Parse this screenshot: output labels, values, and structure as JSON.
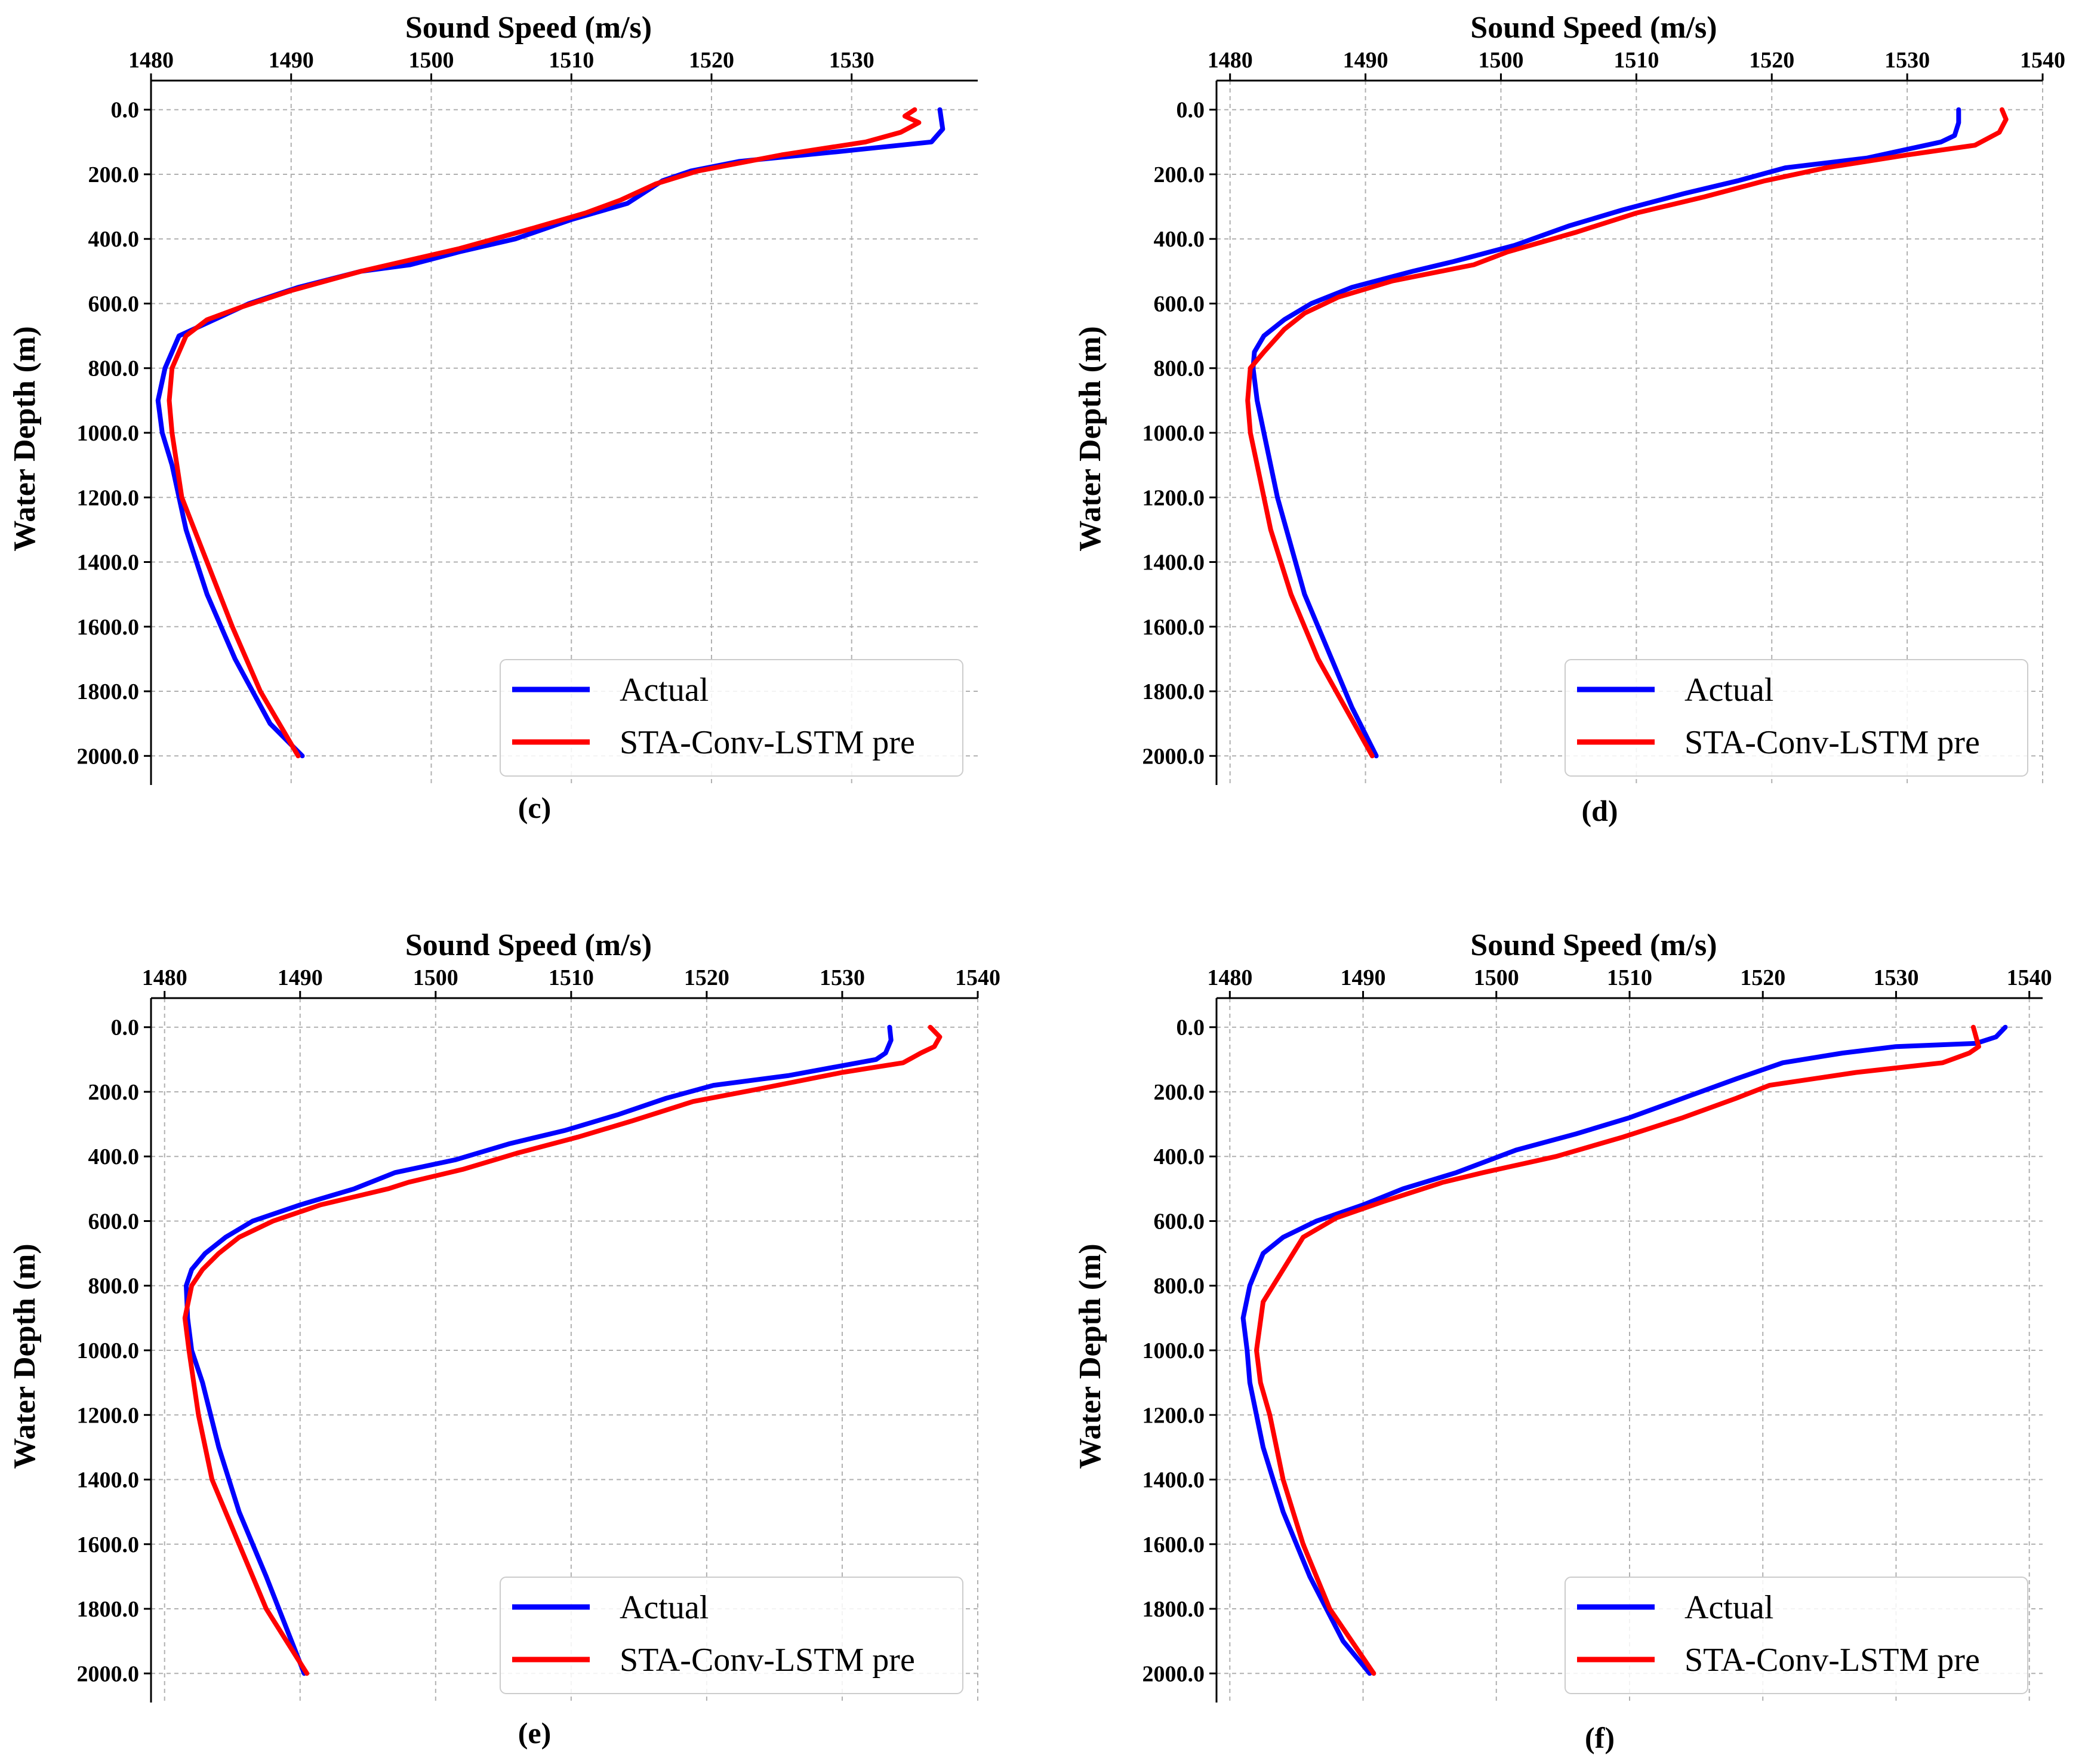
{
  "chart_data": [
    {
      "id": "c",
      "type": "line",
      "label": "(c)",
      "xlabel": "Sound Speed (m/s)",
      "ylabel": "Water Depth (m)",
      "xlim": [
        1480,
        1539
      ],
      "x_ticks": [
        1480,
        1490,
        1500,
        1510,
        1520,
        1530
      ],
      "x_tick_labels": [
        "1480",
        "1490",
        "1500",
        "1510",
        "1520",
        "1530"
      ],
      "ylim": [
        2090,
        -90
      ],
      "y_ticks": [
        0,
        200,
        400,
        600,
        800,
        1000,
        1200,
        1400,
        1600,
        1800,
        2000
      ],
      "y_tick_labels": [
        "0.0",
        "200.0",
        "400.0",
        "600.0",
        "800.0",
        "1000.0",
        "1200.0",
        "1400.0",
        "1600.0",
        "1800.0",
        "2000.0"
      ],
      "legend": {
        "position": "lower-right",
        "entries": [
          "Actual",
          "STA-Conv-LSTM pre"
        ]
      },
      "series": [
        {
          "name": "Actual",
          "color": "#0000ff",
          "x": [
            1536.3,
            1536.5,
            1535.7,
            1529.0,
            1522.0,
            1518.5,
            1516.5,
            1514.0,
            1510.0,
            1506.0,
            1502.0,
            1498.5,
            1495.0,
            1490.5,
            1487.0,
            1484.5,
            1482.0,
            1481.0,
            1480.5,
            1480.8,
            1481.5,
            1482.5,
            1484.0,
            1486.0,
            1488.5,
            1490.8
          ],
          "y": [
            0,
            60,
            100,
            130,
            160,
            190,
            220,
            290,
            340,
            400,
            440,
            480,
            500,
            550,
            600,
            650,
            700,
            800,
            900,
            1000,
            1100,
            1300,
            1500,
            1700,
            1900,
            2000
          ]
        },
        {
          "name": "STA-Conv-LSTM pre",
          "color": "#ff0000",
          "x": [
            1534.5,
            1533.8,
            1534.8,
            1533.5,
            1531.0,
            1525.0,
            1519.0,
            1516.0,
            1513.5,
            1511.0,
            1507.0,
            1502.0,
            1497.0,
            1495.0,
            1490.0,
            1486.5,
            1484.0,
            1482.5,
            1481.5,
            1481.3,
            1481.5,
            1482.2,
            1484.0,
            1485.8,
            1487.8,
            1490.5
          ],
          "y": [
            0,
            20,
            40,
            70,
            100,
            140,
            190,
            230,
            280,
            320,
            370,
            430,
            480,
            500,
            560,
            610,
            650,
            700,
            800,
            900,
            1000,
            1200,
            1400,
            1600,
            1800,
            2000
          ]
        }
      ]
    },
    {
      "id": "d",
      "type": "line",
      "label": "(d)",
      "xlabel": "Sound Speed (m/s)",
      "ylabel": "Water Depth (m)",
      "xlim": [
        1479,
        1540
      ],
      "x_ticks": [
        1480,
        1490,
        1500,
        1510,
        1520,
        1530,
        1540
      ],
      "x_tick_labels": [
        "1480",
        "1490",
        "1500",
        "1510",
        "1520",
        "1530",
        "1540"
      ],
      "ylim": [
        2090,
        -90
      ],
      "y_ticks": [
        0,
        200,
        400,
        600,
        800,
        1000,
        1200,
        1400,
        1600,
        1800,
        2000
      ],
      "y_tick_labels": [
        "0.0",
        "200.0",
        "400.0",
        "600.0",
        "800.0",
        "1000.0",
        "1200.0",
        "1400.0",
        "1600.0",
        "1800.0",
        "2000.0"
      ],
      "legend": {
        "position": "lower-right",
        "entries": [
          "Actual",
          "STA-Conv-LSTM pre"
        ]
      },
      "series": [
        {
          "name": "Actual",
          "color": "#0000ff",
          "x": [
            1533.8,
            1533.8,
            1533.5,
            1532.5,
            1527.0,
            1521.0,
            1517.5,
            1513.5,
            1509.0,
            1505.0,
            1501.0,
            1496.5,
            1493.5,
            1489.0,
            1486.0,
            1484.0,
            1482.5,
            1481.8,
            1481.7,
            1482.0,
            1482.5,
            1483.5,
            1485.5,
            1487.5,
            1489.0,
            1490.8
          ],
          "y": [
            0,
            40,
            80,
            100,
            150,
            180,
            220,
            260,
            310,
            360,
            420,
            470,
            500,
            550,
            600,
            650,
            700,
            750,
            800,
            900,
            1000,
            1200,
            1500,
            1700,
            1850,
            2000
          ]
        },
        {
          "name": "STA-Conv-LSTM pre",
          "color": "#ff0000",
          "x": [
            1537.0,
            1537.3,
            1536.8,
            1535.0,
            1530.0,
            1524.0,
            1519.5,
            1515.0,
            1510.0,
            1505.5,
            1500.5,
            1498.0,
            1492.0,
            1488.0,
            1485.5,
            1484.0,
            1482.5,
            1481.5,
            1481.3,
            1481.5,
            1482.0,
            1483.0,
            1484.5,
            1486.5,
            1488.5,
            1490.5
          ],
          "y": [
            0,
            30,
            70,
            110,
            140,
            180,
            220,
            270,
            320,
            380,
            440,
            480,
            530,
            580,
            630,
            680,
            750,
            800,
            900,
            1000,
            1100,
            1300,
            1500,
            1700,
            1850,
            2000
          ]
        }
      ]
    },
    {
      "id": "e",
      "type": "line",
      "label": "(e)",
      "xlabel": "Sound Speed (m/s)",
      "ylabel": "Water Depth (m)",
      "xlim": [
        1479,
        1540
      ],
      "x_ticks": [
        1480,
        1490,
        1500,
        1510,
        1520,
        1530,
        1540
      ],
      "x_tick_labels": [
        "1480",
        "1490",
        "1500",
        "1510",
        "1520",
        "1530",
        "1540"
      ],
      "ylim": [
        2090,
        -90
      ],
      "y_ticks": [
        0,
        200,
        400,
        600,
        800,
        1000,
        1200,
        1400,
        1600,
        1800,
        2000
      ],
      "y_tick_labels": [
        "0.0",
        "200.0",
        "400.0",
        "600.0",
        "800.0",
        "1000.0",
        "1200.0",
        "1400.0",
        "1600.0",
        "1800.0",
        "2000.0"
      ],
      "legend": {
        "position": "lower-right",
        "entries": [
          "Actual",
          "STA-Conv-LSTM pre"
        ]
      },
      "series": [
        {
          "name": "Actual",
          "color": "#0000ff",
          "x": [
            1533.5,
            1533.6,
            1533.2,
            1532.5,
            1526.0,
            1520.5,
            1517.0,
            1513.5,
            1509.5,
            1505.5,
            1501.5,
            1497.0,
            1494.0,
            1490.0,
            1486.5,
            1484.5,
            1483.0,
            1482.0,
            1481.6,
            1481.7,
            1482.0,
            1482.8,
            1484.0,
            1485.5,
            1487.5,
            1490.3
          ],
          "y": [
            0,
            40,
            80,
            100,
            150,
            180,
            220,
            270,
            320,
            360,
            410,
            450,
            500,
            550,
            600,
            650,
            700,
            750,
            800,
            900,
            1000,
            1100,
            1300,
            1500,
            1700,
            2000
          ]
        },
        {
          "name": "STA-Conv-LSTM pre",
          "color": "#ff0000",
          "x": [
            1536.5,
            1537.2,
            1536.8,
            1535.8,
            1534.5,
            1530.0,
            1524.0,
            1519.0,
            1514.5,
            1510.5,
            1506.0,
            1502.0,
            1498.0,
            1496.5,
            1491.5,
            1488.0,
            1485.5,
            1484.0,
            1482.8,
            1482.0,
            1481.5,
            1481.8,
            1482.5,
            1483.5,
            1485.5,
            1487.5,
            1490.5
          ],
          "y": [
            0,
            30,
            60,
            80,
            110,
            140,
            190,
            230,
            290,
            340,
            390,
            440,
            480,
            500,
            550,
            600,
            650,
            700,
            750,
            800,
            900,
            1000,
            1200,
            1400,
            1600,
            1800,
            2000
          ]
        }
      ]
    },
    {
      "id": "f",
      "type": "line",
      "label": "(f)",
      "xlabel": "Sound Speed (m/s)",
      "ylabel": "Water Depth (m)",
      "xlim": [
        1479,
        1541
      ],
      "x_ticks": [
        1480,
        1490,
        1500,
        1510,
        1520,
        1530,
        1540
      ],
      "x_tick_labels": [
        "1480",
        "1490",
        "1500",
        "1510",
        "1520",
        "1530",
        "1540"
      ],
      "ylim": [
        2090,
        -90
      ],
      "y_ticks": [
        0,
        200,
        400,
        600,
        800,
        1000,
        1200,
        1400,
        1600,
        1800,
        2000
      ],
      "y_tick_labels": [
        "0.0",
        "200.0",
        "400.0",
        "600.0",
        "800.0",
        "1000.0",
        "1200.0",
        "1400.0",
        "1600.0",
        "1800.0",
        "2000.0"
      ],
      "legend": {
        "position": "lower-right",
        "entries": [
          "Actual",
          "STA-Conv-LSTM pre"
        ]
      },
      "series": [
        {
          "name": "Actual",
          "color": "#0000ff",
          "x": [
            1538.2,
            1537.5,
            1536.0,
            1530.0,
            1526.0,
            1521.5,
            1518.0,
            1514.0,
            1510.0,
            1506.0,
            1501.5,
            1497.0,
            1493.0,
            1490.0,
            1486.5,
            1484.0,
            1482.5,
            1481.5,
            1481.0,
            1481.3,
            1481.5,
            1482.5,
            1484.0,
            1486.0,
            1488.5,
            1490.5
          ],
          "y": [
            0,
            30,
            50,
            60,
            80,
            110,
            160,
            220,
            280,
            330,
            380,
            450,
            500,
            550,
            600,
            650,
            700,
            800,
            900,
            1000,
            1100,
            1300,
            1500,
            1700,
            1900,
            2000
          ]
        },
        {
          "name": "STA-Conv-LSTM pre",
          "color": "#ff0000",
          "x": [
            1535.8,
            1536.0,
            1536.2,
            1535.5,
            1533.5,
            1527.0,
            1520.5,
            1518.0,
            1514.0,
            1509.5,
            1504.5,
            1499.0,
            1496.0,
            1491.5,
            1488.0,
            1485.5,
            1484.0,
            1482.5,
            1482.0,
            1482.3,
            1483.0,
            1484.0,
            1485.5,
            1487.5,
            1490.8
          ],
          "y": [
            0,
            30,
            60,
            80,
            110,
            140,
            180,
            220,
            280,
            340,
            400,
            450,
            480,
            540,
            590,
            650,
            750,
            850,
            1000,
            1100,
            1200,
            1400,
            1600,
            1800,
            2000
          ]
        }
      ]
    }
  ]
}
